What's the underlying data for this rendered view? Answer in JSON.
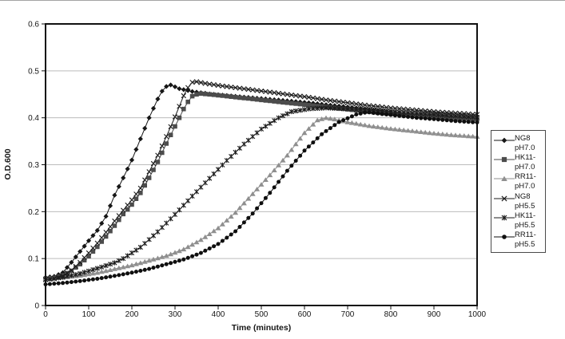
{
  "chart_data": {
    "type": "line",
    "title": "",
    "xlabel": "Time (minutes)",
    "ylabel": "O.D.600",
    "xlim": [
      0,
      1000
    ],
    "ylim": [
      0,
      0.6
    ],
    "x_ticks": [
      0,
      100,
      200,
      300,
      400,
      500,
      600,
      700,
      800,
      900,
      1000
    ],
    "x_tick_labels": [
      "0",
      "100",
      "200",
      "300",
      "400",
      "500",
      "600",
      "700",
      "800",
      "900",
      "1000"
    ],
    "y_ticks": [
      0,
      0.1,
      0.2,
      0.3,
      0.4,
      0.5,
      0.6
    ],
    "y_tick_labels": [
      "0",
      "0.1",
      "0.2",
      "0.3",
      "0.4",
      "0.5",
      "0.6"
    ],
    "grid": "horizontal-only",
    "gridline_color": "#bcbcbc",
    "frame_color": "#111111",
    "legend_position": "right-outside",
    "marker_interval_min": 10,
    "series": [
      {
        "name": "NG8 pH7.0",
        "legend_lines": [
          "NG8",
          "pH7.0"
        ],
        "marker": "diamond",
        "color": "#161616",
        "points": [
          [
            0,
            0.06
          ],
          [
            20,
            0.062
          ],
          [
            40,
            0.07
          ],
          [
            60,
            0.092
          ],
          [
            80,
            0.115
          ],
          [
            100,
            0.138
          ],
          [
            120,
            0.16
          ],
          [
            140,
            0.19
          ],
          [
            160,
            0.235
          ],
          [
            180,
            0.272
          ],
          [
            200,
            0.31
          ],
          [
            220,
            0.355
          ],
          [
            240,
            0.4
          ],
          [
            260,
            0.44
          ],
          [
            275,
            0.465
          ],
          [
            290,
            0.47
          ],
          [
            310,
            0.462
          ],
          [
            340,
            0.456
          ],
          [
            380,
            0.451
          ],
          [
            450,
            0.445
          ],
          [
            500,
            0.441
          ],
          [
            550,
            0.437
          ],
          [
            600,
            0.433
          ],
          [
            650,
            0.428
          ],
          [
            700,
            0.423
          ],
          [
            750,
            0.418
          ],
          [
            800,
            0.413
          ],
          [
            850,
            0.408
          ],
          [
            900,
            0.403
          ],
          [
            950,
            0.4
          ],
          [
            1000,
            0.397
          ]
        ]
      },
      {
        "name": "HK11- pH7.0",
        "legend_lines": [
          "HK11-",
          "pH7.0"
        ],
        "marker": "square",
        "color": "#4c4c4c",
        "points": [
          [
            0,
            0.057
          ],
          [
            20,
            0.059
          ],
          [
            40,
            0.064
          ],
          [
            60,
            0.074
          ],
          [
            80,
            0.088
          ],
          [
            100,
            0.105
          ],
          [
            120,
            0.125
          ],
          [
            140,
            0.147
          ],
          [
            160,
            0.17
          ],
          [
            180,
            0.195
          ],
          [
            200,
            0.215
          ],
          [
            220,
            0.24
          ],
          [
            240,
            0.272
          ],
          [
            260,
            0.306
          ],
          [
            280,
            0.345
          ],
          [
            310,
            0.4
          ],
          [
            325,
            0.428
          ],
          [
            340,
            0.446
          ],
          [
            355,
            0.452
          ],
          [
            380,
            0.45
          ],
          [
            420,
            0.446
          ],
          [
            470,
            0.441
          ],
          [
            520,
            0.436
          ],
          [
            570,
            0.431
          ],
          [
            620,
            0.426
          ],
          [
            670,
            0.421
          ],
          [
            720,
            0.416
          ],
          [
            770,
            0.411
          ],
          [
            820,
            0.407
          ],
          [
            870,
            0.404
          ],
          [
            920,
            0.401
          ],
          [
            960,
            0.399
          ],
          [
            1000,
            0.397
          ]
        ]
      },
      {
        "name": "RR11- pH7.0",
        "legend_lines": [
          "RR11-",
          "pH7.0"
        ],
        "marker": "triangle",
        "color": "#8f8f8f",
        "points": [
          [
            0,
            0.057
          ],
          [
            40,
            0.06
          ],
          [
            80,
            0.064
          ],
          [
            120,
            0.07
          ],
          [
            160,
            0.078
          ],
          [
            200,
            0.086
          ],
          [
            240,
            0.096
          ],
          [
            280,
            0.106
          ],
          [
            320,
            0.12
          ],
          [
            360,
            0.14
          ],
          [
            400,
            0.165
          ],
          [
            440,
            0.198
          ],
          [
            480,
            0.238
          ],
          [
            520,
            0.278
          ],
          [
            560,
            0.32
          ],
          [
            600,
            0.368
          ],
          [
            630,
            0.395
          ],
          [
            650,
            0.4
          ],
          [
            670,
            0.397
          ],
          [
            700,
            0.391
          ],
          [
            750,
            0.383
          ],
          [
            800,
            0.377
          ],
          [
            850,
            0.372
          ],
          [
            900,
            0.367
          ],
          [
            950,
            0.363
          ],
          [
            1000,
            0.36
          ]
        ]
      },
      {
        "name": "NG8 pH5.5",
        "legend_lines": [
          "NG8",
          "pH5.5"
        ],
        "marker": "x",
        "color": "#1c1c1c",
        "points": [
          [
            0,
            0.055
          ],
          [
            20,
            0.057
          ],
          [
            40,
            0.063
          ],
          [
            60,
            0.075
          ],
          [
            80,
            0.092
          ],
          [
            100,
            0.112
          ],
          [
            120,
            0.133
          ],
          [
            140,
            0.156
          ],
          [
            160,
            0.18
          ],
          [
            180,
            0.203
          ],
          [
            200,
            0.225
          ],
          [
            220,
            0.25
          ],
          [
            240,
            0.285
          ],
          [
            260,
            0.32
          ],
          [
            280,
            0.36
          ],
          [
            300,
            0.402
          ],
          [
            320,
            0.447
          ],
          [
            335,
            0.473
          ],
          [
            345,
            0.478
          ],
          [
            365,
            0.474
          ],
          [
            400,
            0.469
          ],
          [
            450,
            0.463
          ],
          [
            500,
            0.457
          ],
          [
            550,
            0.451
          ],
          [
            600,
            0.445
          ],
          [
            650,
            0.438
          ],
          [
            700,
            0.432
          ],
          [
            750,
            0.426
          ],
          [
            800,
            0.421
          ],
          [
            850,
            0.417
          ],
          [
            900,
            0.413
          ],
          [
            950,
            0.41
          ],
          [
            1000,
            0.407
          ]
        ]
      },
      {
        "name": "HK11- pH5.5",
        "legend_lines": [
          "HK11-",
          "pH5.5"
        ],
        "marker": "asterisk",
        "color": "#1c1c1c",
        "points": [
          [
            0,
            0.055
          ],
          [
            40,
            0.06
          ],
          [
            80,
            0.068
          ],
          [
            120,
            0.079
          ],
          [
            160,
            0.091
          ],
          [
            180,
            0.1
          ],
          [
            220,
            0.124
          ],
          [
            260,
            0.157
          ],
          [
            300,
            0.194
          ],
          [
            340,
            0.233
          ],
          [
            380,
            0.271
          ],
          [
            420,
            0.309
          ],
          [
            460,
            0.344
          ],
          [
            500,
            0.376
          ],
          [
            540,
            0.4
          ],
          [
            570,
            0.413
          ],
          [
            610,
            0.419
          ],
          [
            650,
            0.421
          ],
          [
            700,
            0.419
          ],
          [
            750,
            0.416
          ],
          [
            800,
            0.413
          ],
          [
            850,
            0.41
          ],
          [
            900,
            0.407
          ],
          [
            950,
            0.404
          ],
          [
            1000,
            0.401
          ]
        ]
      },
      {
        "name": "RR11- pH5.5",
        "legend_lines": [
          "RR11-",
          "pH5.5"
        ],
        "marker": "circle",
        "color": "#0f0f0f",
        "points": [
          [
            0,
            0.045
          ],
          [
            40,
            0.048
          ],
          [
            80,
            0.052
          ],
          [
            120,
            0.057
          ],
          [
            160,
            0.063
          ],
          [
            200,
            0.07
          ],
          [
            240,
            0.078
          ],
          [
            280,
            0.088
          ],
          [
            320,
            0.098
          ],
          [
            360,
            0.112
          ],
          [
            400,
            0.131
          ],
          [
            440,
            0.158
          ],
          [
            480,
            0.196
          ],
          [
            520,
            0.24
          ],
          [
            560,
            0.287
          ],
          [
            600,
            0.33
          ],
          [
            640,
            0.365
          ],
          [
            680,
            0.391
          ],
          [
            720,
            0.407
          ],
          [
            745,
            0.412
          ],
          [
            780,
            0.408
          ],
          [
            820,
            0.404
          ],
          [
            860,
            0.4
          ],
          [
            900,
            0.397
          ],
          [
            950,
            0.393
          ],
          [
            1000,
            0.39
          ]
        ]
      }
    ]
  }
}
